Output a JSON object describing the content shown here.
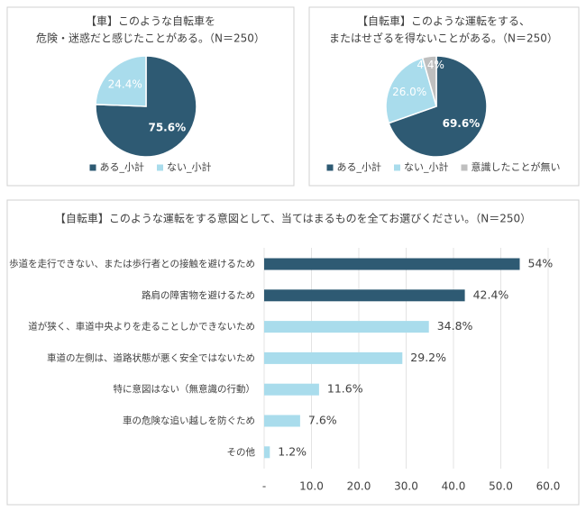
{
  "chart_data": [
    {
      "type": "pie",
      "title": [
        "【車】このような自転車を",
        "危険・迷惑だと感じたことがある。（N＝250）"
      ],
      "categories": [
        "ある_小計",
        "ない_小計"
      ],
      "values": [
        75.6,
        24.4
      ],
      "value_labels": [
        "75.6%",
        "24.4%"
      ],
      "colors": [
        "#2e5a73",
        "#a9dcec"
      ]
    },
    {
      "type": "pie",
      "title": [
        "【自転車】このような運転をする、",
        "またはせざるを得ないことがある。（N＝250）"
      ],
      "categories": [
        "ある_小計",
        "ない_小計",
        "意識したことが無い"
      ],
      "values": [
        69.6,
        26.0,
        4.4
      ],
      "value_labels": [
        "69.6%",
        "26.0%",
        "4.4%"
      ],
      "colors": [
        "#2e5a73",
        "#a9dcec",
        "#bfbfbf"
      ]
    },
    {
      "type": "hbar",
      "title": "【自転車】このような運転をする意図として、当てはまるものを全てお選びください。（N＝250）",
      "categories": [
        "歩道を走行できない、または歩行者との接触を避けるため",
        "路肩の障害物を避けるため",
        "道が狭く、車道中央よりを走ることしかできないため",
        "車道の左側は、道路状態が悪く安全ではないため",
        "特に意図はない（無意識の行動）",
        "車の危険な追い越しを防ぐため",
        "その他"
      ],
      "values": [
        54,
        42.4,
        34.8,
        29.2,
        11.6,
        7.6,
        1.2
      ],
      "value_labels": [
        "54%",
        "42.4%",
        "34.8%",
        "29.2%",
        "11.6%",
        "7.6%",
        "1.2%"
      ],
      "colors": [
        "#2e5a73",
        "#2e5a73",
        "#a9dcec",
        "#a9dcec",
        "#a9dcec",
        "#a9dcec",
        "#a9dcec"
      ],
      "xlim": [
        0,
        60
      ],
      "xticks": [
        {
          "value": 0,
          "label": "-"
        },
        {
          "value": 10,
          "label": "10.0"
        },
        {
          "value": 20,
          "label": "20.0"
        },
        {
          "value": 30,
          "label": "30.0"
        },
        {
          "value": 40,
          "label": "40.0"
        },
        {
          "value": 50,
          "label": "50.0"
        },
        {
          "value": 60,
          "label": "60.0"
        }
      ],
      "grid": true
    }
  ]
}
